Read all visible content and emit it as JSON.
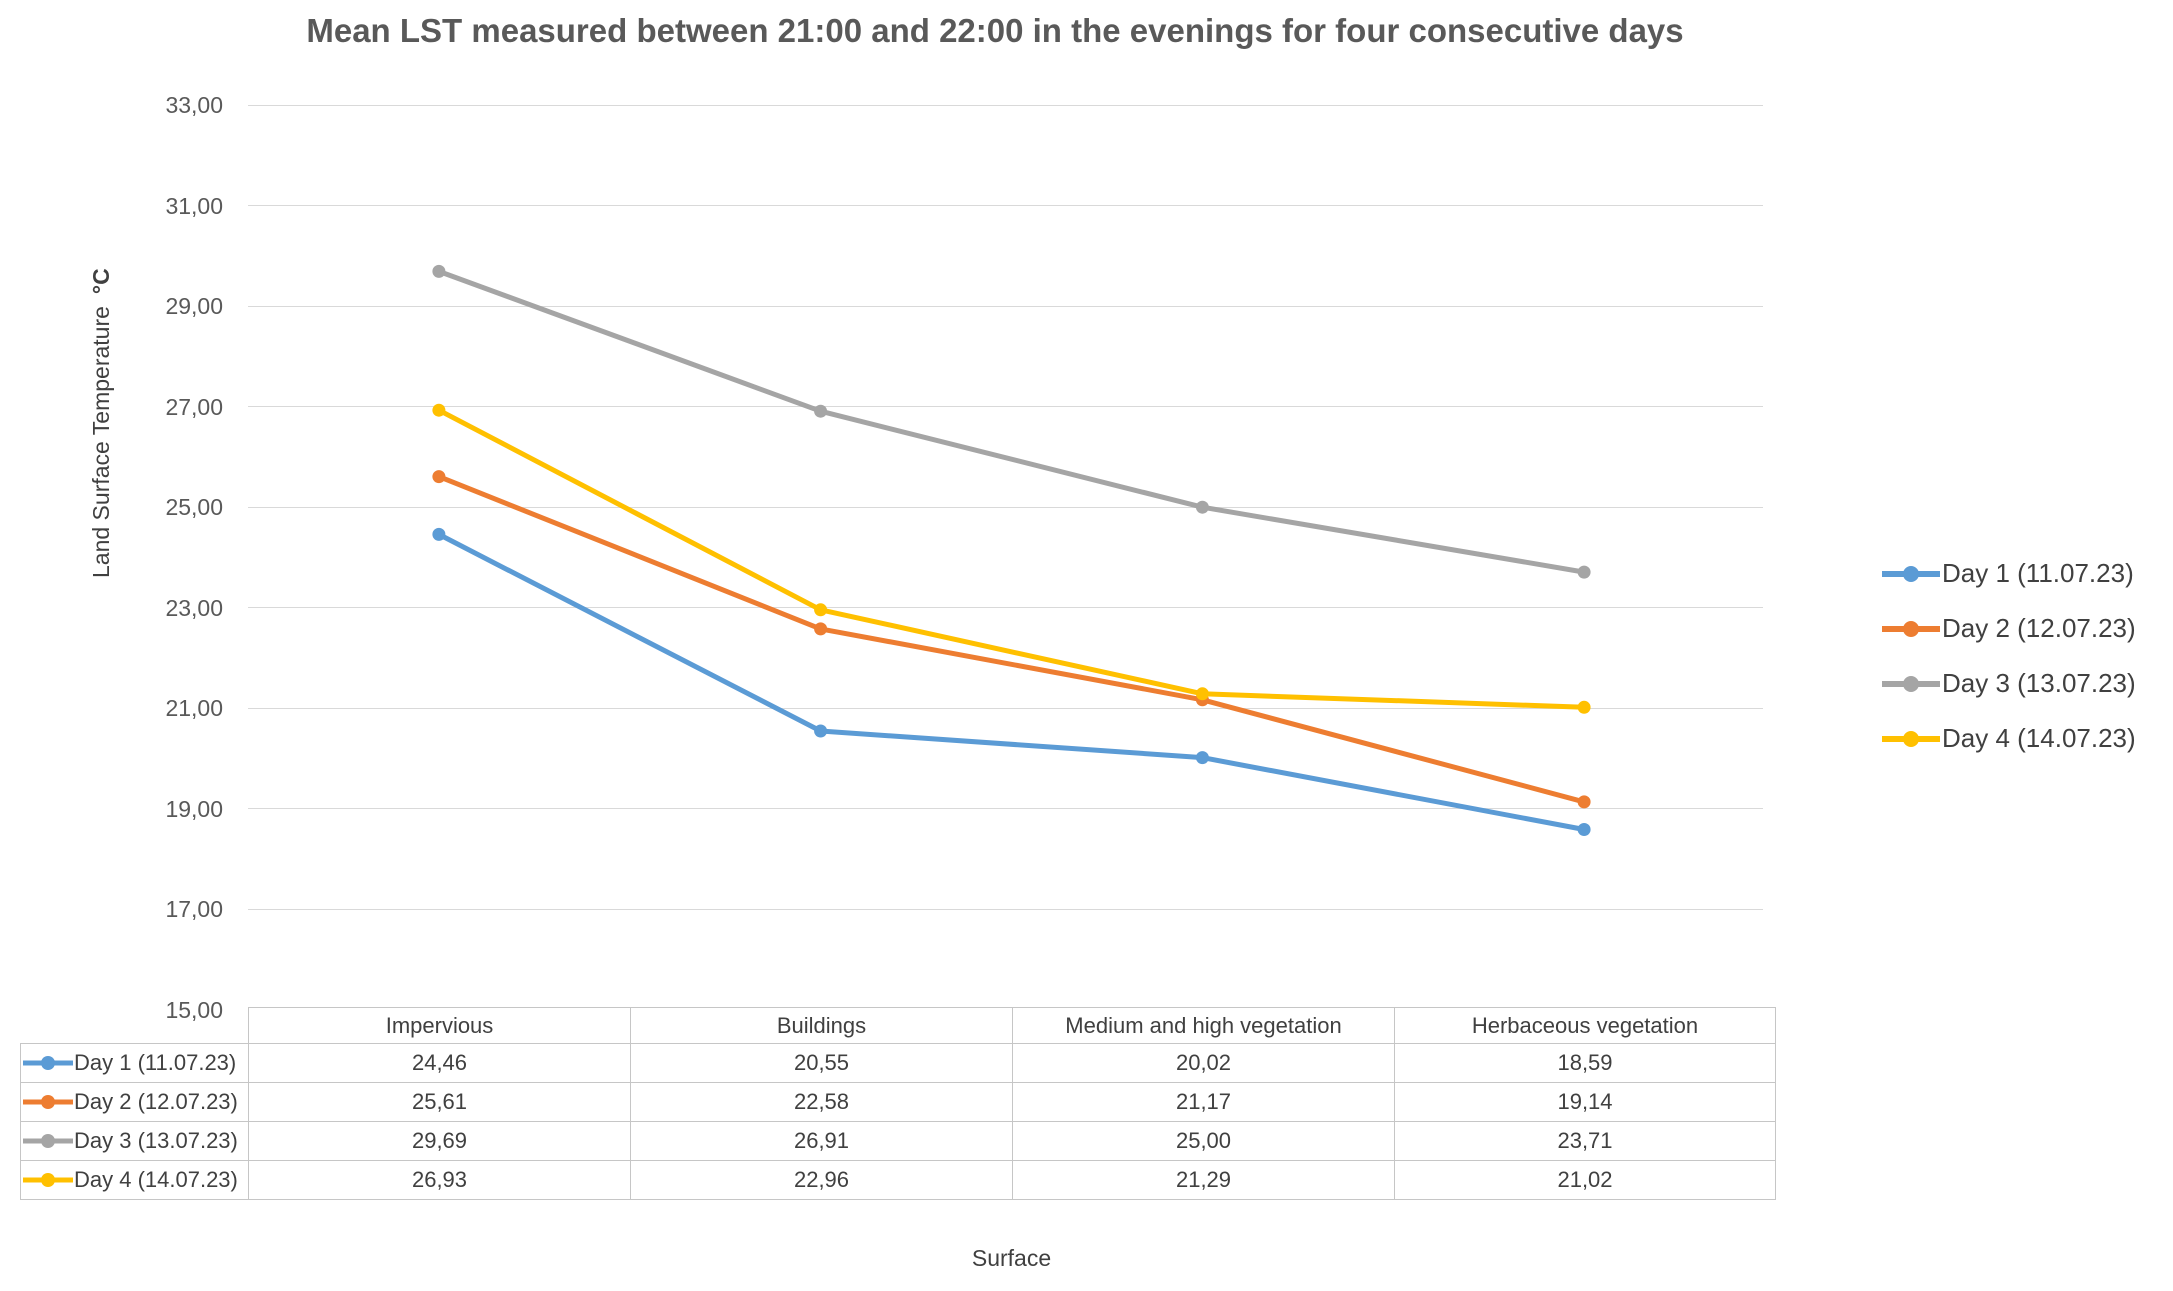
{
  "y_axis": {
    "title": "Land Surface Temperature",
    "unit": "°C",
    "ticks": [
      "33,00",
      "31,00",
      "29,00",
      "27,00",
      "25,00",
      "23,00",
      "21,00",
      "19,00",
      "17,00",
      "15,00"
    ]
  },
  "x_axis": {
    "title": "Surface"
  },
  "colors": {
    "gridline": "#D9D9D9",
    "table_border": "#C6C6C6",
    "tick_text": "#595959",
    "title_text": "#595959",
    "body_text": "#404040"
  },
  "chart_data": {
    "type": "line",
    "title": "Mean LST measured between 21:00 and 22:00 in the evenings for four consecutive days",
    "categories": [
      "Impervious",
      "Buildings",
      "Medium and high vegetation",
      "Herbaceous vegetation"
    ],
    "series": [
      {
        "name": "Day 1 (11.07.23)",
        "color": "#5B9BD5",
        "values": [
          24.46,
          20.55,
          20.02,
          18.59
        ],
        "values_display": [
          "24,46",
          "20,55",
          "20,02",
          "18,59"
        ]
      },
      {
        "name": "Day 2 (12.07.23)",
        "color": "#ED7D31",
        "values": [
          25.61,
          22.58,
          21.17,
          19.14
        ],
        "values_display": [
          "25,61",
          "22,58",
          "21,17",
          "19,14"
        ]
      },
      {
        "name": "Day 3 (13.07.23)",
        "color": "#A5A5A5",
        "values": [
          29.69,
          26.91,
          25.0,
          23.71
        ],
        "values_display": [
          "29,69",
          "26,91",
          "25,00",
          "23,71"
        ]
      },
      {
        "name": "Day 4 (14.07.23)",
        "color": "#FFC000",
        "values": [
          26.93,
          22.96,
          21.29,
          21.02
        ],
        "values_display": [
          "26,93",
          "22,96",
          "21,29",
          "21,02"
        ]
      }
    ],
    "xlabel": "Surface",
    "ylabel": "Land Surface Temperature °C",
    "ylim": [
      15,
      33
    ],
    "ytick_step": 2,
    "grid": true,
    "legend_position": "right",
    "marker": "circle",
    "decimal_separator": ","
  }
}
